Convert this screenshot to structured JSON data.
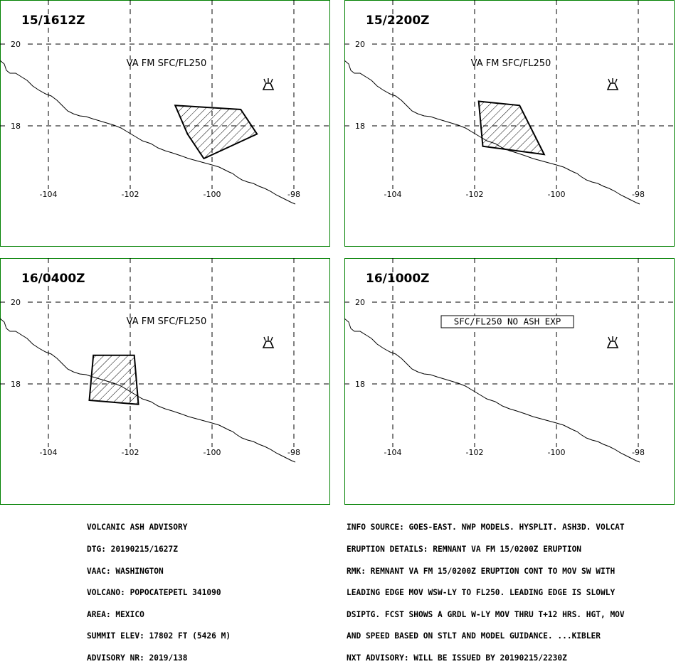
{
  "panels": [
    {
      "time": "15/1612Z",
      "label": "VA FM SFC/FL250",
      "label_style": "plain",
      "polygon": [
        [
          -100.9,
          18.5
        ],
        [
          -99.3,
          18.4
        ],
        [
          -98.9,
          17.8
        ],
        [
          -100.2,
          17.2
        ],
        [
          -100.6,
          17.8
        ]
      ]
    },
    {
      "time": "15/2200Z",
      "label": "VA FM SFC/FL250",
      "label_style": "plain",
      "polygon": [
        [
          -101.9,
          18.6
        ],
        [
          -100.9,
          18.5
        ],
        [
          -100.3,
          17.3
        ],
        [
          -101.8,
          17.5
        ]
      ]
    },
    {
      "time": "16/0400Z",
      "label": "VA FM SFC/FL250",
      "label_style": "plain",
      "polygon": [
        [
          -102.9,
          18.7
        ],
        [
          -101.9,
          18.7
        ],
        [
          -101.8,
          17.5
        ],
        [
          -103,
          17.6
        ]
      ]
    },
    {
      "time": "16/1000Z",
      "label": "SFC/FL250 NO ASH EXP",
      "label_style": "boxed",
      "polygon": []
    }
  ],
  "map": {
    "lat_labels": [
      "20",
      "18"
    ],
    "lon_labels": [
      "-104",
      "-102",
      "-100",
      "-98"
    ],
    "volcano_symbol": "volcano-icon"
  },
  "colors": {
    "border": "#008000",
    "line": "#000000"
  },
  "advisory_lines": [
    "VOLCANIC ASH ADVISORY",
    "DTG: 20190215/1627Z",
    "VAAC: WASHINGTON",
    "VOLCANO: POPOCATEPETL 341090",
    "AREA: MEXICO",
    "SUMMIT ELEV: 17802 FT (5426 M)",
    "ADVISORY NR: 2019/138"
  ],
  "info_lines": [
    "INFO SOURCE: GOES-EAST. NWP MODELS. HYSPLIT. ASH3D. VOLCAT",
    "ERUPTION DETAILS: REMNANT VA FM 15/0200Z ERUPTION",
    "RMK: REMNANT VA FM 15/0200Z ERUPTION CONT TO MOV SW WITH",
    "LEADING EDGE MOV WSW-LY TO FL250. LEADING EDGE IS SLOWLY",
    "DSIPTG. FCST SHOWS A GRDL W-LY MOV THRU T+12 HRS. HGT, MOV",
    "AND SPEED BASED ON STLT AND MODEL GUIDANCE. ...KIBLER",
    "NXT ADVISORY: WILL BE ISSUED BY 20190215/2230Z"
  ]
}
